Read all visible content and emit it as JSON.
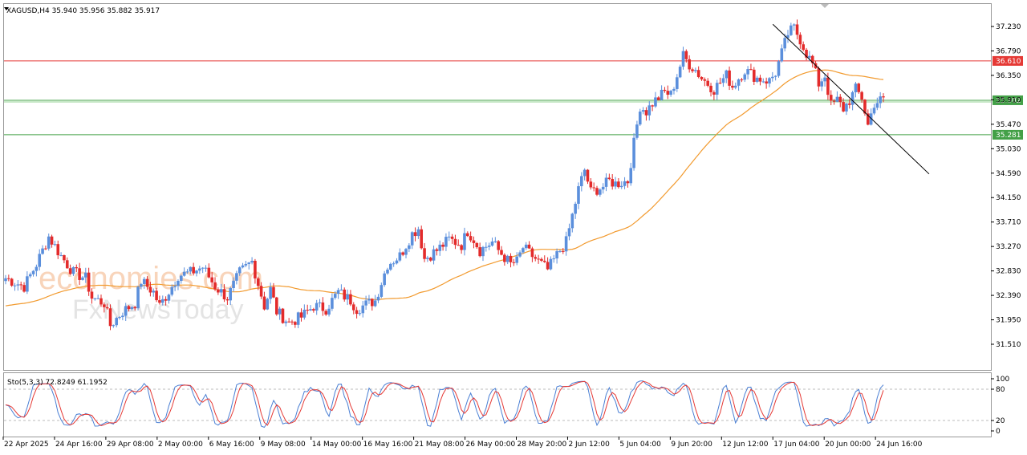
{
  "chart_data": {
    "type": "candlestick",
    "symbol_header": "XAGUSD,H4  35.940 35.956 35.882 35.917",
    "price_axis": {
      "range": [
        31.51,
        37.45
      ],
      "ticks": [
        "37.230",
        "36.790",
        "36.350",
        "35.910",
        "35.470",
        "35.030",
        "34.590",
        "34.150",
        "33.710",
        "33.270",
        "32.830",
        "32.390",
        "31.950",
        "31.510"
      ]
    },
    "time_axis": {
      "labels": [
        "22 Apr 2025",
        "24 Apr 16:00",
        "29 Apr 08:00",
        "2 May 00:00",
        "6 May 16:00",
        "9 May 08:00",
        "14 May 00:00",
        "16 May 16:00",
        "21 May 08:00",
        "26 May 00:00",
        "28 May 20:00",
        "2 Jun 12:00",
        "5 Jun 04:00",
        "9 Jun 20:00",
        "12 Jun 12:00",
        "17 Jun 04:00",
        "20 Jun 00:00",
        "24 Jun 16:00"
      ]
    },
    "levels": [
      {
        "price": 36.61,
        "label": "36.610",
        "color": "#e53935"
      },
      {
        "price": 35.902,
        "label": "35.902",
        "color": "#43a047"
      },
      {
        "price": 35.281,
        "label": "35.281",
        "color": "#43a047"
      }
    ],
    "trendline": {
      "from": {
        "date": "17 Jun 04:00",
        "price": 37.27
      },
      "to": {
        "date": "24 Jun 16:00",
        "price": 35.5
      },
      "color": "#000000"
    },
    "moving_average": {
      "color": "#f29a2e"
    },
    "price_path": [
      [
        0,
        32.7
      ],
      [
        6,
        32.55
      ],
      [
        10,
        32.95
      ],
      [
        14,
        33.45
      ],
      [
        18,
        33.1
      ],
      [
        22,
        32.8
      ],
      [
        26,
        32.7
      ],
      [
        28,
        32.35
      ],
      [
        32,
        32.25
      ],
      [
        34,
        31.85
      ],
      [
        38,
        32.1
      ],
      [
        42,
        32.25
      ],
      [
        44,
        32.65
      ],
      [
        48,
        32.45
      ],
      [
        50,
        32.2
      ],
      [
        54,
        32.55
      ],
      [
        56,
        32.75
      ],
      [
        60,
        32.8
      ],
      [
        64,
        32.9
      ],
      [
        68,
        32.55
      ],
      [
        72,
        32.35
      ],
      [
        76,
        32.8
      ],
      [
        80,
        33.0
      ],
      [
        84,
        32.2
      ],
      [
        86,
        32.5
      ],
      [
        88,
        32.1
      ],
      [
        92,
        31.9
      ],
      [
        96,
        32.0
      ],
      [
        100,
        32.2
      ],
      [
        104,
        32.15
      ],
      [
        108,
        32.45
      ],
      [
        112,
        32.3
      ],
      [
        114,
        32.15
      ],
      [
        120,
        32.3
      ],
      [
        124,
        32.95
      ],
      [
        128,
        33.1
      ],
      [
        132,
        33.5
      ],
      [
        134,
        33.6
      ],
      [
        136,
        33.05
      ],
      [
        140,
        33.2
      ],
      [
        144,
        33.4
      ],
      [
        148,
        33.3
      ],
      [
        150,
        33.55
      ],
      [
        152,
        33.4
      ],
      [
        154,
        33.2
      ],
      [
        158,
        33.35
      ],
      [
        160,
        33.2
      ],
      [
        164,
        32.95
      ],
      [
        166,
        33.0
      ],
      [
        168,
        33.25
      ],
      [
        172,
        33.05
      ],
      [
        176,
        32.85
      ],
      [
        180,
        33.2
      ],
      [
        182,
        33.35
      ],
      [
        186,
        34.3
      ],
      [
        188,
        34.65
      ],
      [
        190,
        34.25
      ],
      [
        194,
        34.35
      ],
      [
        196,
        34.45
      ],
      [
        198,
        34.4
      ],
      [
        202,
        34.45
      ],
      [
        206,
        35.8
      ],
      [
        208,
        35.7
      ],
      [
        210,
        35.85
      ],
      [
        212,
        35.95
      ],
      [
        214,
        36.05
      ],
      [
        216,
        36.0
      ],
      [
        220,
        36.7
      ],
      [
        222,
        36.55
      ],
      [
        224,
        36.45
      ],
      [
        226,
        36.3
      ],
      [
        230,
        36.1
      ],
      [
        234,
        36.35
      ],
      [
        236,
        36.15
      ],
      [
        238,
        36.3
      ],
      [
        240,
        36.45
      ],
      [
        244,
        36.3
      ],
      [
        248,
        36.25
      ],
      [
        250,
        36.4
      ],
      [
        254,
        37.1
      ],
      [
        256,
        37.2
      ],
      [
        258,
        37.0
      ],
      [
        260,
        36.75
      ],
      [
        262,
        36.55
      ],
      [
        264,
        36.2
      ],
      [
        266,
        36.35
      ],
      [
        268,
        35.8
      ],
      [
        270,
        35.9
      ],
      [
        272,
        35.75
      ],
      [
        274,
        35.9
      ],
      [
        276,
        36.1
      ],
      [
        278,
        35.95
      ],
      [
        280,
        35.45
      ],
      [
        282,
        35.85
      ],
      [
        284,
        35.9
      ]
    ],
    "stochastic": {
      "label": "Sto(5,3,3) 72.8249 61.1952",
      "axis": {
        "range": [
          0,
          100
        ],
        "ticks": [
          "100",
          "80",
          "20",
          "0"
        ],
        "levels": [
          80,
          20
        ]
      },
      "main_color": "#4a7fd4",
      "signal_color": "#e53935"
    }
  },
  "watermark": {
    "line1": "economies.com",
    "line2": "FxNewsToday"
  }
}
